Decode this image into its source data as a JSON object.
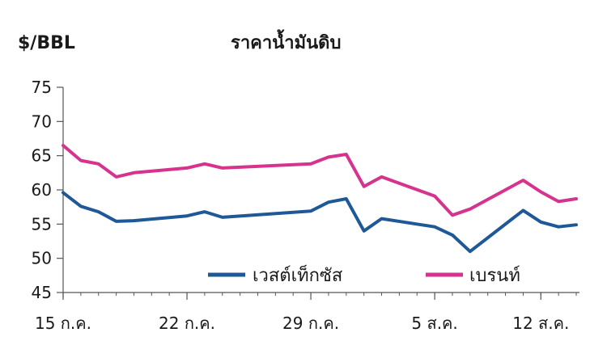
{
  "chart_data": {
    "type": "line",
    "title": "ราคาน้ำมันดิบ",
    "ylabel": "$/BBL",
    "xlabel": "",
    "ylim": [
      45,
      75
    ],
    "yticks": [
      45,
      50,
      55,
      60,
      65,
      70,
      75
    ],
    "x": [
      0,
      1,
      2,
      3,
      4,
      7,
      8,
      9,
      14,
      15,
      16,
      17,
      18,
      21,
      22,
      23,
      26,
      27,
      28,
      29
    ],
    "xlim": [
      0,
      29
    ],
    "xticks": [
      {
        "x": 0,
        "label": "15 ก.ค."
      },
      {
        "x": 7,
        "label": "22 ก.ค."
      },
      {
        "x": 14,
        "label": "29 ก.ค."
      },
      {
        "x": 21,
        "label": "5 ส.ค."
      },
      {
        "x": 27,
        "label": "12 ส.ค."
      }
    ],
    "grid": false,
    "legend_position": "bottom",
    "series": [
      {
        "name": "เวสต์เท็กซัส",
        "color": "#1f5896",
        "values": [
          59.6,
          57.6,
          56.8,
          55.4,
          55.5,
          56.2,
          56.8,
          56.0,
          56.9,
          58.2,
          58.7,
          54.0,
          55.8,
          54.6,
          53.4,
          51.0,
          57.0,
          55.3,
          54.6,
          54.9
        ]
      },
      {
        "name": "เบรนท์",
        "color": "#d6338f",
        "values": [
          66.5,
          64.3,
          63.8,
          61.9,
          62.5,
          63.2,
          63.8,
          63.2,
          63.8,
          64.8,
          65.2,
          60.5,
          61.9,
          59.1,
          56.3,
          57.2,
          61.4,
          59.7,
          58.3,
          58.7
        ]
      }
    ]
  }
}
